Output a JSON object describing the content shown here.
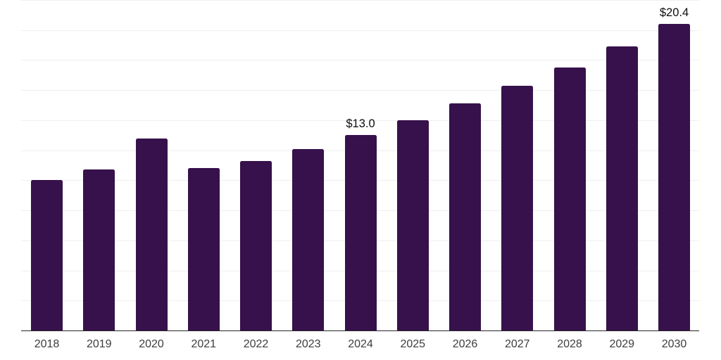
{
  "chart_data": {
    "type": "bar",
    "title": "",
    "xlabel": "",
    "ylabel": "",
    "categories": [
      "2018",
      "2019",
      "2020",
      "2021",
      "2022",
      "2023",
      "2024",
      "2025",
      "2026",
      "2027",
      "2028",
      "2029",
      "2030"
    ],
    "values": [
      10.0,
      10.7,
      12.8,
      10.8,
      11.3,
      12.1,
      13.0,
      14.0,
      15.1,
      16.3,
      17.5,
      18.9,
      20.4
    ],
    "data_labels": [
      "",
      "",
      "",
      "",
      "",
      "",
      "$13.0",
      "",
      "",
      "",
      "",
      "",
      "$20.4"
    ],
    "ylim": [
      0,
      22
    ],
    "gridline_step": 2,
    "grid": true,
    "legend_position": "none",
    "colors": {
      "bar": "#36114b",
      "gridline": "#efefef",
      "axis_line": "#262626",
      "tick_label": "#3d3d3d",
      "data_label": "#0d0d0d",
      "background": "#ffffff"
    }
  }
}
